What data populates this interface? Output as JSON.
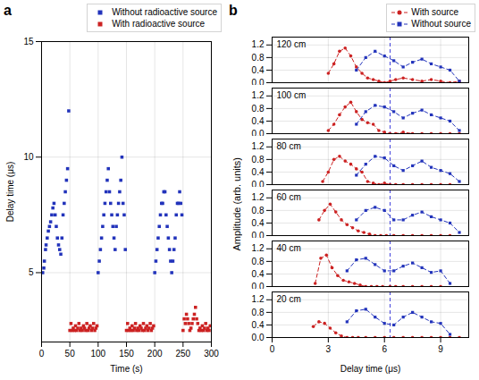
{
  "chart_data": [
    {
      "type": "scatter",
      "title": "a",
      "xlabel": "Time (s)",
      "ylabel": "Delay time (μs)",
      "xlim": [
        0,
        300
      ],
      "ylim": [
        2,
        15
      ],
      "xticks": [
        0,
        50,
        100,
        150,
        200,
        250,
        300
      ],
      "yticks": [
        5,
        10,
        15
      ],
      "grid": true,
      "legend": "upper right",
      "series": [
        {
          "name": "Without radioactive source",
          "color": "#2233bb",
          "marker": "square",
          "x": [
            2,
            4,
            5,
            7,
            8,
            10,
            12,
            14,
            16,
            18,
            20,
            22,
            24,
            26,
            28,
            30,
            32,
            34,
            36,
            38,
            40,
            42,
            44,
            46,
            48,
            100,
            102,
            104,
            106,
            108,
            110,
            112,
            114,
            116,
            118,
            120,
            122,
            124,
            126,
            128,
            130,
            132,
            134,
            136,
            138,
            140,
            142,
            144,
            146,
            148,
            200,
            202,
            204,
            206,
            208,
            210,
            212,
            214,
            216,
            218,
            220,
            222,
            224,
            226,
            228,
            230,
            232,
            234,
            236,
            238,
            240,
            242,
            244,
            246,
            248
          ],
          "values": [
            5.0,
            5.2,
            5.5,
            6.0,
            6.2,
            6.5,
            6.8,
            7.0,
            7.2,
            7.5,
            7.8,
            8.0,
            7.5,
            7.0,
            6.5,
            6.2,
            6.0,
            5.8,
            6.5,
            7.5,
            8.0,
            8.5,
            9.0,
            9.5,
            12.0,
            5.0,
            5.5,
            6.0,
            6.5,
            7.0,
            7.5,
            8.0,
            8.5,
            9.0,
            9.5,
            8.5,
            8.0,
            7.5,
            7.0,
            6.5,
            6.0,
            7.0,
            7.5,
            8.0,
            8.5,
            9.0,
            10.0,
            8.0,
            7.5,
            6.0,
            5.0,
            5.5,
            6.0,
            6.5,
            7.0,
            7.5,
            8.0,
            8.0,
            8.5,
            8.5,
            7.5,
            7.0,
            6.5,
            6.0,
            5.5,
            5.0,
            5.5,
            6.0,
            6.5,
            7.5,
            8.0,
            8.0,
            8.5,
            8.0,
            7.5
          ]
        },
        {
          "name": "With radioactive source",
          "color": "#cc2222",
          "marker": "square",
          "x": [
            50,
            52,
            54,
            56,
            58,
            60,
            62,
            64,
            66,
            68,
            70,
            72,
            74,
            76,
            78,
            80,
            82,
            84,
            86,
            88,
            90,
            92,
            94,
            96,
            98,
            150,
            152,
            154,
            156,
            158,
            160,
            162,
            164,
            166,
            168,
            170,
            172,
            174,
            176,
            178,
            180,
            182,
            184,
            186,
            188,
            190,
            192,
            194,
            196,
            198,
            250,
            252,
            254,
            256,
            258,
            260,
            262,
            264,
            266,
            268,
            270,
            272,
            274,
            276,
            278,
            280,
            282,
            284,
            286,
            288,
            290,
            292,
            294,
            296,
            298
          ],
          "values": [
            2.5,
            2.8,
            2.5,
            2.6,
            2.5,
            2.7,
            2.5,
            2.6,
            2.8,
            2.5,
            2.6,
            2.5,
            2.7,
            2.6,
            2.5,
            2.8,
            2.5,
            2.6,
            2.7,
            2.5,
            2.6,
            2.8,
            2.5,
            2.6,
            2.7,
            2.5,
            2.8,
            2.5,
            2.6,
            2.5,
            2.7,
            2.5,
            2.6,
            2.8,
            2.5,
            2.6,
            2.5,
            2.7,
            2.6,
            2.5,
            2.8,
            2.5,
            2.6,
            2.7,
            2.5,
            2.6,
            2.8,
            2.5,
            2.6,
            2.7,
            2.5,
            3.0,
            2.8,
            3.2,
            3.0,
            2.8,
            2.5,
            2.6,
            2.8,
            3.0,
            3.2,
            3.5,
            3.0,
            2.8,
            2.5,
            2.6,
            2.5,
            2.7,
            2.5,
            2.6,
            2.8,
            2.5,
            2.6,
            2.5,
            2.7
          ]
        }
      ]
    },
    {
      "type": "line",
      "title": "b",
      "xlabel": "Delay time (μs)",
      "ylabel": "Amplitude (arb. units)",
      "xlim": [
        0,
        10.5
      ],
      "ylim": [
        0.0,
        1.45
      ],
      "xticks": [
        0,
        3,
        6,
        9
      ],
      "yticks": [
        {
          "value": 0.0,
          "label": "0.0"
        },
        0.4,
        0.8,
        1.2
      ],
      "grid": true,
      "legend": "upper right",
      "annotations": [
        {
          "type": "vline",
          "x": 6.3,
          "color": "#4444dd",
          "line_style": "dashed"
        }
      ],
      "panels": [
        {
          "title": "120 cm",
          "series": [
            {
              "name": "With source",
              "color": "#cc2222",
              "marker": "circle",
              "line_style": "dashed",
              "x": [
                3.0,
                3.3,
                3.6,
                3.9,
                4.2,
                4.5,
                4.8,
                5.1,
                5.4,
                5.7,
                6.0,
                6.3,
                6.6,
                7.0,
                7.5,
                8.0,
                8.5,
                9.0,
                9.5,
                10.0
              ],
              "values": [
                0.3,
                0.6,
                1.0,
                1.1,
                0.85,
                0.5,
                0.3,
                0.15,
                0.1,
                0.05,
                0.0,
                0.05,
                0.1,
                0.15,
                0.1,
                0.05,
                0.1,
                0.05,
                0.0,
                0.05
              ]
            },
            {
              "name": "Without source",
              "color": "#2233bb",
              "marker": "square",
              "line_style": "dashed",
              "x": [
                4.5,
                5.0,
                5.5,
                6.0,
                6.5,
                7.0,
                7.5,
                8.0,
                8.5,
                9.0,
                9.5,
                10.0
              ],
              "values": [
                0.4,
                0.8,
                1.0,
                0.85,
                0.7,
                0.5,
                0.65,
                0.75,
                0.6,
                0.5,
                0.4,
                0.05
              ]
            }
          ]
        },
        {
          "title": "100 cm",
          "series": [
            {
              "name": "With source",
              "color": "#cc2222",
              "marker": "circle",
              "line_style": "dashed",
              "x": [
                3.0,
                3.3,
                3.6,
                3.9,
                4.2,
                4.5,
                4.8,
                5.1,
                5.4,
                5.7,
                6.0,
                6.3,
                6.6,
                7.0,
                7.5,
                8.0,
                8.5,
                9.0,
                9.5,
                10.0
              ],
              "values": [
                0.1,
                0.3,
                0.6,
                0.85,
                1.0,
                0.7,
                0.45,
                0.35,
                0.3,
                0.1,
                0.05,
                0.0,
                0.0,
                0.05,
                0.0,
                0.0,
                0.0,
                0.0,
                0.0,
                0.0
              ]
            },
            {
              "name": "Without source",
              "color": "#2233bb",
              "marker": "square",
              "line_style": "dashed",
              "x": [
                4.5,
                5.0,
                5.5,
                6.0,
                6.5,
                7.0,
                7.5,
                8.0,
                8.5,
                9.0,
                9.5,
                10.0
              ],
              "values": [
                0.3,
                0.7,
                0.9,
                0.85,
                0.7,
                0.5,
                0.65,
                0.75,
                0.6,
                0.5,
                0.4,
                0.1
              ]
            }
          ]
        },
        {
          "title": "80 cm",
          "series": [
            {
              "name": "With source",
              "color": "#cc2222",
              "marker": "circle",
              "line_style": "dashed",
              "x": [
                2.7,
                3.0,
                3.3,
                3.6,
                3.9,
                4.2,
                4.5,
                4.8,
                5.1,
                5.4,
                5.7,
                6.0,
                6.3,
                6.6,
                7.0,
                7.5,
                8.0,
                8.5,
                9.0,
                9.5
              ],
              "values": [
                0.1,
                0.4,
                0.8,
                0.9,
                0.75,
                0.65,
                0.5,
                0.4,
                0.1,
                0.05,
                0.0,
                0.05,
                0.0,
                0.0,
                0.0,
                0.0,
                0.0,
                0.0,
                0.0,
                0.0
              ]
            },
            {
              "name": "Without source",
              "color": "#2233bb",
              "marker": "square",
              "line_style": "dashed",
              "x": [
                4.5,
                5.0,
                5.5,
                6.0,
                6.5,
                7.0,
                7.5,
                8.0,
                8.5,
                9.0,
                9.5,
                10.0
              ],
              "values": [
                0.3,
                0.65,
                0.9,
                0.85,
                0.6,
                0.45,
                0.6,
                0.75,
                0.55,
                0.45,
                0.35,
                0.1
              ]
            }
          ]
        },
        {
          "title": "60 cm",
          "series": [
            {
              "name": "With source",
              "color": "#cc2222",
              "marker": "circle",
              "line_style": "dashed",
              "x": [
                2.5,
                2.8,
                3.1,
                3.4,
                3.7,
                4.0,
                4.3,
                4.6,
                4.9,
                5.2,
                5.5,
                5.8,
                6.1,
                6.5,
                7.0,
                7.5,
                8.0,
                8.5,
                9.0,
                9.5
              ],
              "values": [
                0.5,
                0.8,
                1.0,
                0.75,
                0.5,
                0.35,
                0.25,
                0.15,
                0.1,
                0.05,
                0.0,
                0.0,
                0.0,
                0.0,
                0.0,
                0.0,
                0.0,
                0.0,
                0.0,
                0.0
              ]
            },
            {
              "name": "Without source",
              "color": "#2233bb",
              "marker": "square",
              "line_style": "dashed",
              "x": [
                4.5,
                5.0,
                5.5,
                6.0,
                6.5,
                7.0,
                7.5,
                8.0,
                8.5,
                9.0,
                9.5,
                10.0
              ],
              "values": [
                0.5,
                0.8,
                0.9,
                0.8,
                0.5,
                0.5,
                0.65,
                0.75,
                0.6,
                0.5,
                0.4,
                0.1
              ]
            }
          ]
        },
        {
          "title": "40 cm",
          "series": [
            {
              "name": "With source",
              "color": "#cc2222",
              "marker": "circle",
              "line_style": "dashed",
              "x": [
                2.3,
                2.6,
                2.9,
                3.2,
                3.5,
                3.8,
                4.1,
                4.4,
                4.7,
                5.0,
                5.3,
                5.6,
                5.9,
                6.3,
                6.6,
                7.0,
                7.5,
                8.0,
                8.5,
                9.0
              ],
              "values": [
                0.1,
                0.9,
                1.0,
                0.6,
                0.35,
                0.2,
                0.15,
                0.1,
                0.05,
                0.0,
                0.0,
                0.0,
                0.0,
                0.0,
                0.0,
                0.0,
                0.0,
                0.0,
                0.0,
                0.0
              ]
            },
            {
              "name": "Without source",
              "color": "#2233bb",
              "marker": "square",
              "line_style": "dashed",
              "x": [
                4.0,
                4.5,
                5.0,
                5.5,
                6.0,
                6.5,
                7.0,
                7.5,
                8.0,
                8.5,
                9.0,
                9.5
              ],
              "values": [
                0.5,
                0.85,
                0.9,
                0.7,
                0.5,
                0.5,
                0.65,
                0.75,
                0.6,
                0.45,
                0.5,
                0.1
              ]
            }
          ]
        },
        {
          "title": "20 cm",
          "series": [
            {
              "name": "With source",
              "color": "#cc2222",
              "marker": "circle",
              "line_style": "dashed",
              "x": [
                2.2,
                2.5,
                2.8,
                3.1,
                3.4,
                3.7,
                4.0,
                4.3,
                4.6,
                5.0,
                5.5,
                6.0,
                6.5,
                7.0,
                7.5,
                8.0,
                8.5,
                9.0,
                9.5,
                10.0
              ],
              "values": [
                0.35,
                0.5,
                0.45,
                0.3,
                0.15,
                0.05,
                0.0,
                0.0,
                0.0,
                0.0,
                0.0,
                0.0,
                0.0,
                0.0,
                0.0,
                0.0,
                0.0,
                0.0,
                0.0,
                0.0
              ]
            },
            {
              "name": "Without source",
              "color": "#2233bb",
              "marker": "square",
              "line_style": "dashed",
              "x": [
                4.0,
                4.5,
                5.0,
                5.5,
                6.0,
                6.5,
                7.0,
                7.5,
                8.0,
                8.5,
                9.0,
                9.5
              ],
              "values": [
                0.5,
                0.85,
                0.9,
                0.65,
                0.45,
                0.4,
                0.65,
                0.8,
                0.65,
                0.5,
                0.45,
                0.1
              ]
            }
          ]
        }
      ]
    }
  ]
}
